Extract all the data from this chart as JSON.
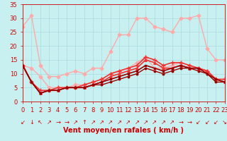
{
  "bg_color": "#c8f0f0",
  "grid_color": "#b0dede",
  "xlabel": "Vent moyen/en rafales ( km/h )",
  "xlim": [
    0,
    23
  ],
  "ylim": [
    0,
    35
  ],
  "yticks": [
    0,
    5,
    10,
    15,
    20,
    25,
    30,
    35
  ],
  "xticks": [
    0,
    1,
    2,
    3,
    4,
    5,
    6,
    7,
    8,
    9,
    10,
    11,
    12,
    13,
    14,
    15,
    16,
    17,
    18,
    19,
    20,
    21,
    22,
    23
  ],
  "series": [
    {
      "x": [
        0,
        1,
        2,
        3,
        4,
        5,
        6,
        7,
        8,
        9,
        10,
        11,
        12,
        13,
        14,
        15,
        16,
        17,
        18,
        19,
        20,
        21,
        22,
        23
      ],
      "y": [
        27,
        31,
        13,
        9,
        9,
        10,
        11,
        10,
        12,
        12,
        18,
        24,
        24,
        30,
        30,
        27,
        26,
        25,
        30,
        30,
        31,
        19,
        15,
        15
      ],
      "color": "#ffaaaa",
      "lw": 1.0,
      "marker": "D",
      "ms": 2.5
    },
    {
      "x": [
        0,
        1,
        2,
        3,
        4,
        5,
        6,
        7,
        8,
        9,
        10,
        11,
        12,
        13,
        14,
        15,
        16,
        17,
        18,
        19,
        20,
        21,
        22,
        23
      ],
      "y": [
        13,
        12,
        9,
        5,
        5,
        5,
        6,
        6,
        7,
        8,
        10,
        11,
        12,
        14,
        16,
        12,
        12,
        13,
        14,
        13,
        12,
        11,
        8,
        8
      ],
      "color": "#ffaaaa",
      "lw": 1.0,
      "marker": "D",
      "ms": 2.5
    },
    {
      "x": [
        0,
        1,
        2,
        3,
        4,
        5,
        6,
        7,
        8,
        9,
        10,
        11,
        12,
        13,
        14,
        15,
        16,
        17,
        18,
        19,
        20,
        21,
        22,
        23
      ],
      "y": [
        13,
        7,
        4,
        4,
        5,
        5,
        5,
        6,
        7,
        8,
        10,
        11,
        12,
        13,
        16,
        15,
        13,
        14,
        14,
        13,
        12,
        11,
        8,
        8
      ],
      "color": "#ee3333",
      "lw": 1.2,
      "marker": "+",
      "ms": 4
    },
    {
      "x": [
        0,
        1,
        2,
        3,
        4,
        5,
        6,
        7,
        8,
        9,
        10,
        11,
        12,
        13,
        14,
        15,
        16,
        17,
        18,
        19,
        20,
        21,
        22,
        23
      ],
      "y": [
        13,
        7,
        3,
        4,
        4,
        5,
        5,
        5,
        6,
        7,
        9,
        10,
        11,
        12,
        15,
        14,
        12,
        12,
        13,
        12,
        12,
        11,
        8,
        7
      ],
      "color": "#ee3333",
      "lw": 1.2,
      "marker": "^",
      "ms": 2.5
    },
    {
      "x": [
        0,
        1,
        2,
        3,
        4,
        5,
        6,
        7,
        8,
        9,
        10,
        11,
        12,
        13,
        14,
        15,
        16,
        17,
        18,
        19,
        20,
        21,
        22,
        23
      ],
      "y": [
        13,
        7,
        3,
        4,
        4,
        5,
        5,
        5,
        6,
        7,
        8,
        9,
        10,
        11,
        13,
        12,
        11,
        12,
        13,
        12,
        12,
        10,
        8,
        7
      ],
      "color": "#990000",
      "lw": 1.2,
      "marker": "s",
      "ms": 1.8
    },
    {
      "x": [
        0,
        1,
        2,
        3,
        4,
        5,
        6,
        7,
        8,
        9,
        10,
        11,
        12,
        13,
        14,
        15,
        16,
        17,
        18,
        19,
        20,
        21,
        22,
        23
      ],
      "y": [
        13,
        7,
        3,
        4,
        4,
        5,
        5,
        5,
        6,
        6,
        7,
        8,
        9,
        10,
        12,
        11,
        10,
        11,
        12,
        12,
        11,
        10,
        7,
        7
      ],
      "color": "#990000",
      "lw": 1.0,
      "marker": "o",
      "ms": 1.8
    }
  ],
  "arrows": [
    "↙",
    "↓",
    "↖",
    "↗",
    "→",
    "→",
    "↗",
    "↑",
    "↗",
    "↗",
    "↗",
    "↗",
    "↗",
    "↗",
    "↗",
    "↗",
    "↗",
    "↗",
    "→",
    "→",
    "↙",
    "↙",
    "↙",
    "↘"
  ],
  "xlabel_color": "#cc0000",
  "xlabel_fontsize": 7,
  "tick_color": "#cc0000",
  "tick_fontsize": 6,
  "arrow_fontsize": 6
}
